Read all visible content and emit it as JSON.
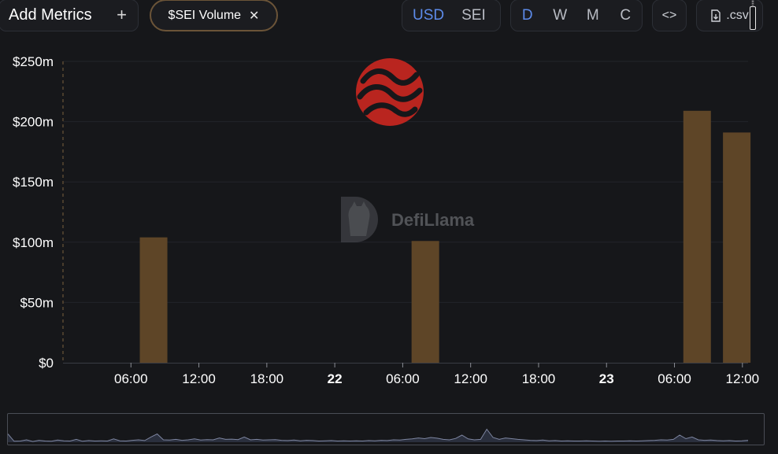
{
  "toolbar": {
    "add_metrics_label": "Add Metrics",
    "add_metrics_icon": "plus-icon",
    "metric_chip_label": "$SEI Volume",
    "metric_chip_icon": "close-icon",
    "currency_options": [
      "USD",
      "SEI"
    ],
    "currency_selected": "USD",
    "period_options": [
      "D",
      "W",
      "M",
      "C"
    ],
    "period_selected": "D",
    "embed_label": "<>",
    "csv_label": ".csv",
    "csv_icon": "file-download-icon"
  },
  "watermark": {
    "brand": "DefiLlama",
    "token_logo_icon": "sei-logo-icon"
  },
  "colors": {
    "bar": "#5e4527",
    "background": "#16171a",
    "accent": "#5d8bea",
    "token_logo": "#b9251f"
  },
  "chart_data": {
    "type": "bar",
    "title": "",
    "xlabel": "",
    "ylabel": "",
    "y_tick_labels": [
      "$0",
      "$50m",
      "$100m",
      "$150m",
      "$200m",
      "$250m"
    ],
    "y_ticks": [
      0,
      50,
      100,
      150,
      200,
      250
    ],
    "ylim": [
      0,
      250
    ],
    "y_unit": "USD millions",
    "x_tick_labels": [
      {
        "label": "06:00",
        "hours": 6,
        "bold": false
      },
      {
        "label": "12:00",
        "hours": 12,
        "bold": false
      },
      {
        "label": "18:00",
        "hours": 18,
        "bold": false
      },
      {
        "label": "22",
        "hours": 24,
        "bold": true
      },
      {
        "label": "06:00",
        "hours": 30,
        "bold": false
      },
      {
        "label": "12:00",
        "hours": 36,
        "bold": false
      },
      {
        "label": "18:00",
        "hours": 42,
        "bold": false
      },
      {
        "label": "23",
        "hours": 48,
        "bold": true
      },
      {
        "label": "06:00",
        "hours": 54,
        "bold": false
      },
      {
        "label": "12:00",
        "hours": 60,
        "bold": false
      }
    ],
    "xlim_hours": [
      0,
      60.5
    ],
    "bars": [
      {
        "hours": 8,
        "value": 104
      },
      {
        "hours": 32,
        "value": 101
      },
      {
        "hours": 56,
        "value": 209
      },
      {
        "hours": 59.5,
        "value": 191
      }
    ],
    "grid": true,
    "legend": "none"
  },
  "brush": {
    "series": [
      0.35,
      0.04,
      0.05,
      0.1,
      0.03,
      0.08,
      0.05,
      0.04,
      0.09,
      0.06,
      0.05,
      0.12,
      0.04,
      0.07,
      0.05,
      0.06,
      0.05,
      0.14,
      0.06,
      0.05,
      0.08,
      0.1,
      0.07,
      0.22,
      0.35,
      0.1,
      0.09,
      0.12,
      0.08,
      0.1,
      0.14,
      0.09,
      0.11,
      0.1,
      0.18,
      0.12,
      0.13,
      0.11,
      0.22,
      0.1,
      0.12,
      0.09,
      0.1,
      0.11,
      0.08,
      0.07,
      0.09,
      0.06,
      0.08,
      0.07,
      0.05,
      0.06,
      0.07,
      0.05,
      0.06,
      0.05,
      0.06,
      0.05,
      0.07,
      0.06,
      0.08,
      0.07,
      0.1,
      0.09,
      0.12,
      0.14,
      0.18,
      0.15,
      0.2,
      0.17,
      0.12,
      0.1,
      0.16,
      0.3,
      0.14,
      0.1,
      0.12,
      0.55,
      0.2,
      0.12,
      0.18,
      0.15,
      0.12,
      0.1,
      0.08,
      0.07,
      0.09,
      0.06,
      0.07,
      0.05,
      0.06,
      0.05,
      0.05,
      0.06,
      0.05,
      0.04,
      0.05,
      0.04,
      0.05,
      0.05,
      0.06,
      0.05,
      0.06,
      0.07,
      0.08,
      0.1,
      0.09,
      0.12,
      0.3,
      0.15,
      0.22,
      0.1,
      0.08,
      0.09,
      0.07,
      0.06,
      0.07,
      0.05,
      0.06,
      0.08
    ]
  }
}
